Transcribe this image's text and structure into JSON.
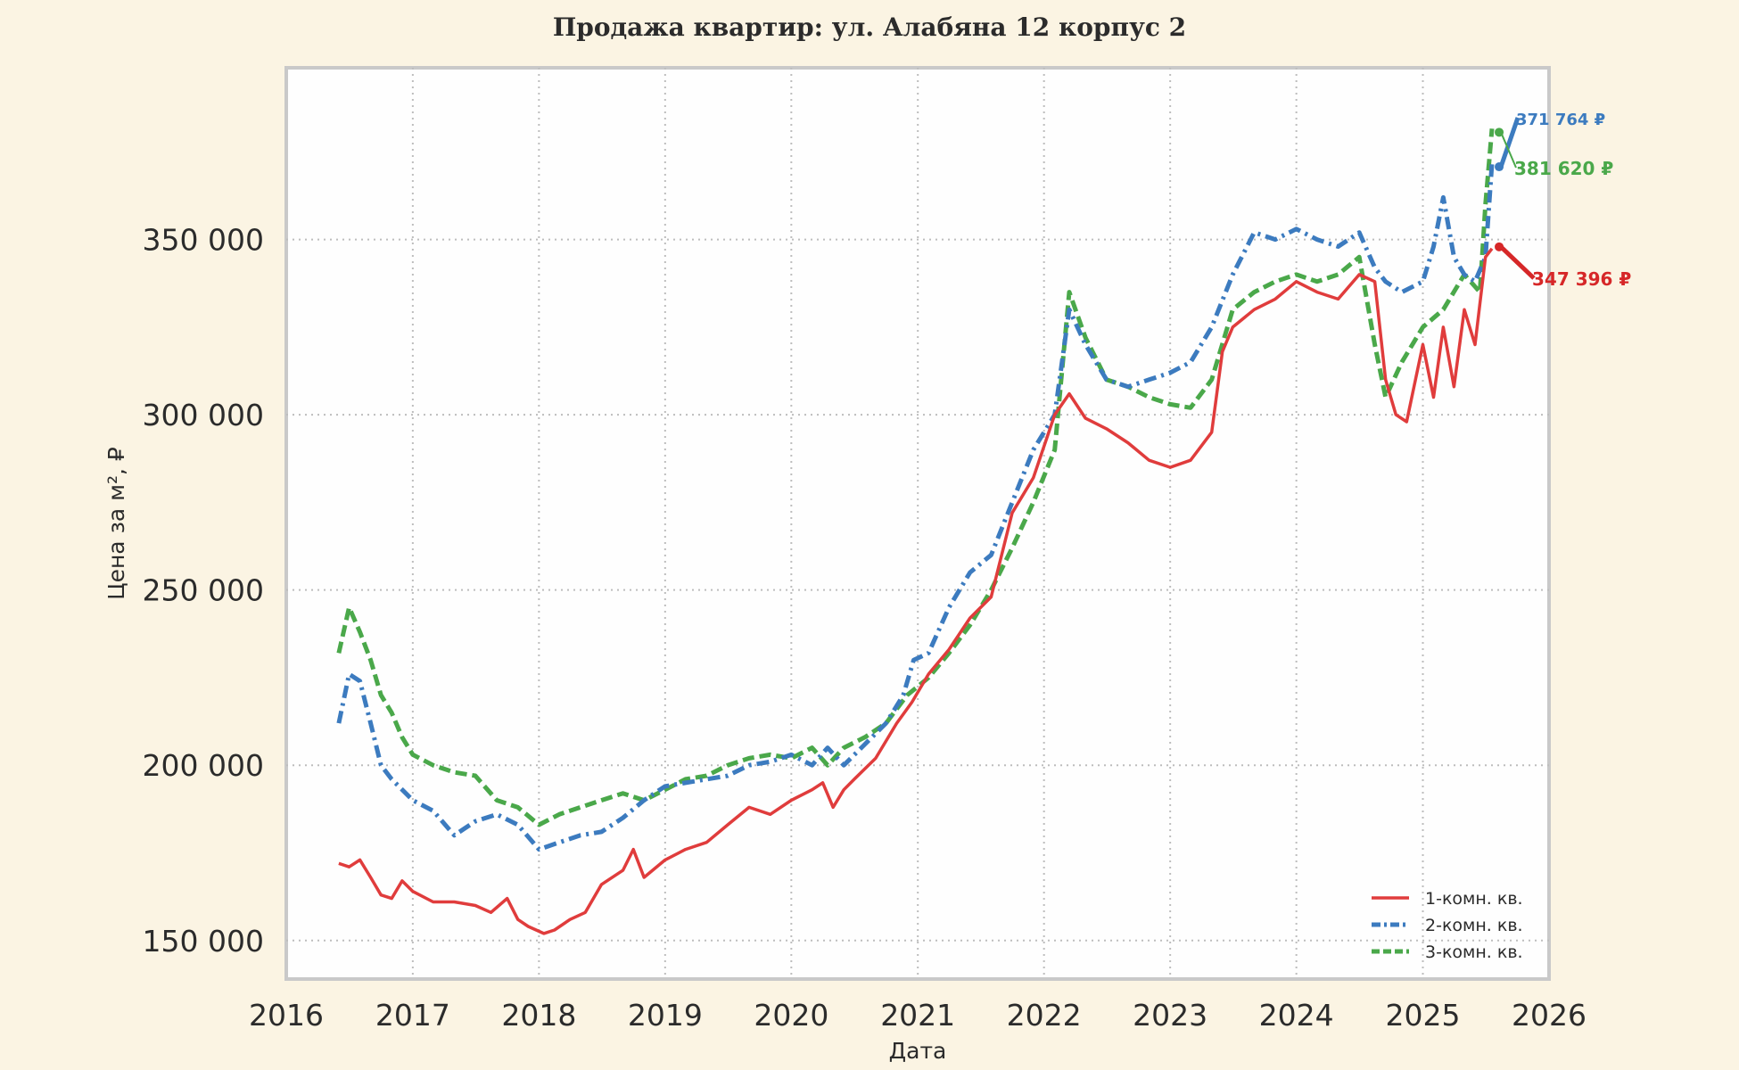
{
  "chart_data": {
    "type": "line",
    "title": "Продажа квартир: ул. Алабяна 12 корпус 2",
    "xlabel": "Дата",
    "ylabel": "Цена за м², ₽",
    "xlim": [
      "2016-01-01",
      "2026-01-01"
    ],
    "ylim": [
      139000,
      399000
    ],
    "xticks": [
      "2016",
      "2017",
      "2018",
      "2019",
      "2020",
      "2021",
      "2022",
      "2023",
      "2024",
      "2025",
      "2026"
    ],
    "yticks": [
      150000,
      200000,
      250000,
      300000,
      350000
    ],
    "ytick_labels": [
      "150 000",
      "200 000",
      "250 000",
      "300 000",
      "350 000"
    ],
    "grid": true,
    "legend": "bottom-right",
    "series": [
      {
        "name": "1-комн. кв.",
        "color": "#e03c3c",
        "style": "solid",
        "x": [
          "2016-06-01",
          "2016-07-01",
          "2016-08-01",
          "2016-09-01",
          "2016-10-01",
          "2016-11-01",
          "2016-12-01",
          "2017-01-01",
          "2017-03-01",
          "2017-05-01",
          "2017-07-01",
          "2017-08-15",
          "2017-10-01",
          "2017-11-01",
          "2017-12-01",
          "2018-01-15",
          "2018-02-15",
          "2018-04-01",
          "2018-05-15",
          "2018-07-01",
          "2018-09-01",
          "2018-10-01",
          "2018-11-01",
          "2019-01-01",
          "2019-03-01",
          "2019-05-01",
          "2019-07-01",
          "2019-09-01",
          "2019-11-01",
          "2020-01-01",
          "2020-03-01",
          "2020-04-01",
          "2020-05-01",
          "2020-06-01",
          "2020-07-01",
          "2020-09-01",
          "2020-11-01",
          "2020-12-15",
          "2021-02-01",
          "2021-04-01",
          "2021-06-01",
          "2021-08-01",
          "2021-10-01",
          "2021-12-01",
          "2022-02-01",
          "2022-03-15",
          "2022-05-01",
          "2022-07-01",
          "2022-09-01",
          "2022-11-01",
          "2023-01-01",
          "2023-03-01",
          "2023-05-01",
          "2023-06-01",
          "2023-07-01",
          "2023-09-01",
          "2023-11-01",
          "2024-01-01",
          "2024-03-01",
          "2024-05-01",
          "2024-07-01",
          "2024-08-15",
          "2024-09-15",
          "2024-10-15",
          "2024-11-15",
          "2025-01-01",
          "2025-02-01",
          "2025-03-01",
          "2025-04-01",
          "2025-05-01",
          "2025-06-01",
          "2025-07-01",
          "2025-07-20"
        ],
        "values": [
          172000,
          171000,
          173000,
          168000,
          163000,
          162000,
          167000,
          164000,
          161000,
          161000,
          160000,
          158000,
          162000,
          156000,
          154000,
          152000,
          153000,
          156000,
          158000,
          166000,
          170000,
          176000,
          168000,
          173000,
          176000,
          178000,
          183000,
          188000,
          186000,
          190000,
          193000,
          195000,
          188000,
          193000,
          196000,
          202000,
          212000,
          218000,
          226000,
          233000,
          242000,
          248000,
          272000,
          282000,
          300000,
          306000,
          299000,
          296000,
          292000,
          287000,
          285000,
          287000,
          295000,
          318000,
          325000,
          330000,
          333000,
          338000,
          335000,
          333000,
          340000,
          338000,
          310000,
          300000,
          298000,
          320000,
          305000,
          325000,
          308000,
          330000,
          320000,
          345000,
          347396
        ]
      },
      {
        "name": "2-комн. кв.",
        "color": "#3c7bbf",
        "style": "dashdot",
        "x": [
          "2016-06-01",
          "2016-07-01",
          "2016-08-01",
          "2016-09-01",
          "2016-10-01",
          "2016-11-01",
          "2017-01-01",
          "2017-03-01",
          "2017-05-01",
          "2017-07-01",
          "2017-09-01",
          "2017-11-01",
          "2018-01-01",
          "2018-03-01",
          "2018-05-01",
          "2018-07-01",
          "2018-09-01",
          "2018-11-01",
          "2019-01-01",
          "2019-03-01",
          "2019-05-01",
          "2019-07-01",
          "2019-09-01",
          "2019-11-01",
          "2020-01-01",
          "2020-03-01",
          "2020-04-15",
          "2020-06-01",
          "2020-08-01",
          "2020-10-01",
          "2020-11-20",
          "2020-12-20",
          "2021-02-01",
          "2021-04-01",
          "2021-06-01",
          "2021-08-01",
          "2021-10-01",
          "2021-12-01",
          "2022-02-01",
          "2022-03-15",
          "2022-05-01",
          "2022-07-01",
          "2022-09-01",
          "2022-11-01",
          "2023-01-01",
          "2023-03-01",
          "2023-05-01",
          "2023-07-01",
          "2023-09-01",
          "2023-11-01",
          "2024-01-01",
          "2024-03-01",
          "2024-05-01",
          "2024-07-01",
          "2024-08-15",
          "2024-09-15",
          "2024-11-01",
          "2025-01-01",
          "2025-02-01",
          "2025-03-01",
          "2025-04-01",
          "2025-05-01",
          "2025-06-01",
          "2025-07-01",
          "2025-07-20"
        ],
        "values": [
          212000,
          226000,
          224000,
          212000,
          200000,
          196000,
          190000,
          187000,
          180000,
          184000,
          186000,
          183000,
          176000,
          178000,
          180000,
          181000,
          185000,
          190000,
          194000,
          195000,
          196000,
          197000,
          200000,
          201000,
          203000,
          200000,
          205000,
          200000,
          206000,
          212000,
          220000,
          230000,
          232000,
          245000,
          255000,
          260000,
          275000,
          290000,
          300000,
          330000,
          320000,
          310000,
          308000,
          310000,
          312000,
          315000,
          325000,
          340000,
          352000,
          350000,
          353000,
          350000,
          348000,
          352000,
          342000,
          338000,
          335000,
          338000,
          348000,
          362000,
          345000,
          340000,
          338000,
          345000,
          371764
        ]
      },
      {
        "name": "3-комн. кв.",
        "color": "#4aa84a",
        "style": "dashed",
        "x": [
          "2016-06-01",
          "2016-07-01",
          "2016-08-01",
          "2016-09-01",
          "2016-10-01",
          "2016-11-01",
          "2016-12-01",
          "2017-01-01",
          "2017-03-01",
          "2017-05-01",
          "2017-07-01",
          "2017-09-01",
          "2017-11-01",
          "2018-01-01",
          "2018-03-01",
          "2018-05-01",
          "2018-07-01",
          "2018-09-01",
          "2018-11-01",
          "2019-01-01",
          "2019-03-01",
          "2019-05-01",
          "2019-07-01",
          "2019-09-01",
          "2019-11-01",
          "2020-01-01",
          "2020-03-01",
          "2020-04-15",
          "2020-06-01",
          "2020-08-01",
          "2020-10-01",
          "2020-12-01",
          "2021-02-01",
          "2021-04-01",
          "2021-06-01",
          "2021-08-01",
          "2021-10-01",
          "2021-12-01",
          "2022-02-01",
          "2022-03-15",
          "2022-05-01",
          "2022-07-01",
          "2022-09-01",
          "2022-11-01",
          "2023-01-01",
          "2023-03-01",
          "2023-05-01",
          "2023-07-01",
          "2023-09-01",
          "2023-11-01",
          "2024-01-01",
          "2024-03-01",
          "2024-05-01",
          "2024-07-01",
          "2024-08-15",
          "2024-09-15",
          "2024-11-01",
          "2025-01-01",
          "2025-03-01",
          "2025-05-01",
          "2025-06-15",
          "2025-07-01",
          "2025-07-20"
        ],
        "values": [
          232000,
          245000,
          238000,
          230000,
          220000,
          215000,
          208000,
          203000,
          200000,
          198000,
          197000,
          190000,
          188000,
          183000,
          186000,
          188000,
          190000,
          192000,
          190000,
          193000,
          196000,
          197000,
          200000,
          202000,
          203000,
          202000,
          205000,
          200000,
          205000,
          208000,
          212000,
          220000,
          225000,
          232000,
          240000,
          250000,
          262000,
          275000,
          290000,
          335000,
          322000,
          310000,
          308000,
          305000,
          303000,
          302000,
          310000,
          330000,
          335000,
          338000,
          340000,
          338000,
          340000,
          345000,
          320000,
          305000,
          315000,
          325000,
          330000,
          340000,
          335000,
          360000,
          381620
        ]
      }
    ],
    "annotations": [
      {
        "text": "371 764 ₽",
        "series": "2-комн. кв.",
        "color": "#3c7bbf"
      },
      {
        "text": "381 620 ₽",
        "series": "3-комн. кв.",
        "color": "#4aa84a"
      },
      {
        "text": "347 396 ₽",
        "series": "1-комн. кв.",
        "color": "#d62728"
      }
    ]
  }
}
